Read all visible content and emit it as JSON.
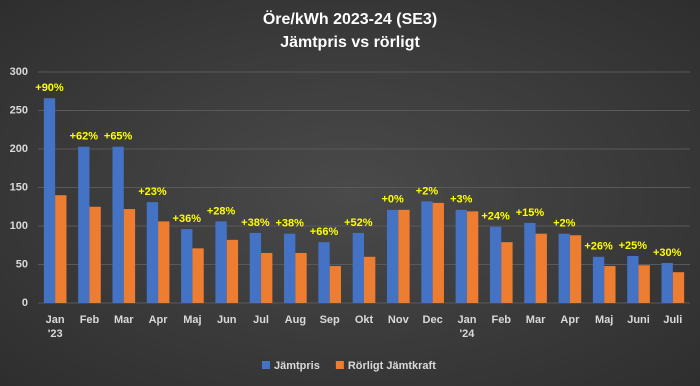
{
  "chart_data": {
    "type": "bar",
    "title": "Öre/kWh 2023-24 (SE3)",
    "subtitle": "Jämtpris vs rörligt",
    "categories": [
      "Jan\n'23",
      "Feb",
      "Mar",
      "Apr",
      "Maj",
      "Jun",
      "Jul",
      "Aug",
      "Sep",
      "Okt",
      "Nov",
      "Dec",
      "Jan\n'24",
      "Feb",
      "Mar",
      "Apr",
      "Maj",
      "Juni",
      "Juli"
    ],
    "series": [
      {
        "name": "Jämtpris",
        "color": "#4472c4",
        "values": [
          266,
          203,
          203,
          131,
          96,
          106,
          91,
          90,
          79,
          91,
          121,
          132,
          121,
          99,
          104,
          90,
          60,
          61,
          52
        ]
      },
      {
        "name": "Rörligt Jämtkraft",
        "color": "#ed7d31",
        "values": [
          140,
          125,
          122,
          106,
          71,
          82,
          65,
          65,
          48,
          60,
          121,
          130,
          119,
          79,
          90,
          88,
          48,
          49,
          40
        ]
      }
    ],
    "annotations": [
      "+90%",
      "+62%",
      "+65%",
      "+23%",
      "+36%",
      "+28%",
      "+38%",
      "+38%",
      "+66%",
      "+52%",
      "+0%",
      "+2%",
      "+3%",
      "+24%",
      "+15%",
      "+2%",
      "+26%",
      "+25%",
      "+30%"
    ],
    "annotation_color": "#ffff00",
    "ylim": [
      0,
      300
    ],
    "yticks": [
      0,
      50,
      100,
      150,
      200,
      250,
      300
    ],
    "grid": true,
    "legend": "bottom"
  }
}
